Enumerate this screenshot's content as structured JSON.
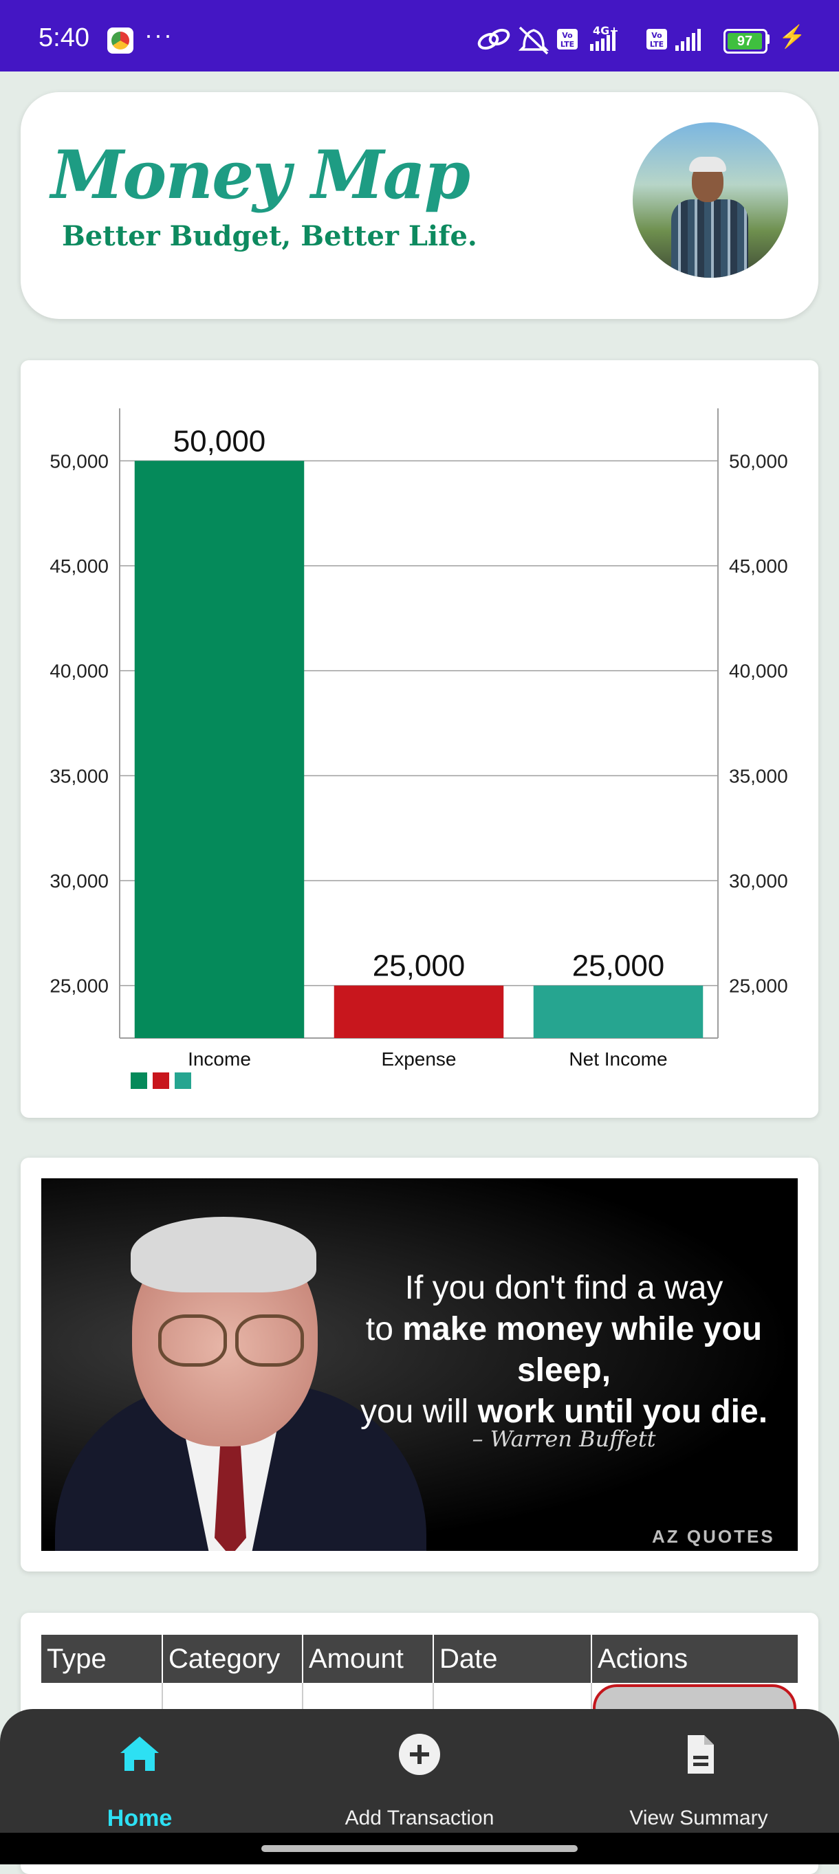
{
  "status_bar": {
    "time": "5:40",
    "dots": "···",
    "icons": [
      "link-icon",
      "bell-off-icon",
      "volte-icon",
      "signal-icon",
      "volte-icon",
      "signal-icon"
    ],
    "network": "4G+",
    "volte_1": "Vo LTE",
    "volte_2": "Vo LTE",
    "battery": "97"
  },
  "header": {
    "title": "Money Map",
    "subtitle": "Better Budget, Better Life."
  },
  "chart_data": {
    "type": "bar",
    "categories": [
      "Income",
      "Expense",
      "Net Income"
    ],
    "values": [
      50000,
      25000,
      25000
    ],
    "data_labels": [
      "50,000",
      "25,000",
      "25,000"
    ],
    "colors": [
      "#058a5a",
      "#c8161d",
      "#26a590"
    ],
    "ylim": [
      22500,
      52500
    ],
    "yticks": [
      25000,
      30000,
      35000,
      40000,
      45000,
      50000
    ],
    "ytick_labels": [
      "25,000",
      "30,000",
      "35,000",
      "40,000",
      "45,000",
      "50,000"
    ],
    "legend_placement": "bottom-left",
    "grid": true,
    "secondary_axis": true
  },
  "quote": {
    "line1": "If you don't find a way",
    "line2_prefix": "to ",
    "line2_bold": "make money while you sleep,",
    "line3_prefix": "you will ",
    "line3_bold": "work until you die.",
    "author": "– Warren Buffett",
    "brand": "AZ QUOTES"
  },
  "table": {
    "headers": [
      "Type",
      "Category",
      "Amount",
      "Date",
      "Actions"
    ]
  },
  "nav": {
    "home_label": "Home",
    "add_label": "Add Transaction",
    "summary_label": "View Summary",
    "active_color": "#2de0f3"
  }
}
